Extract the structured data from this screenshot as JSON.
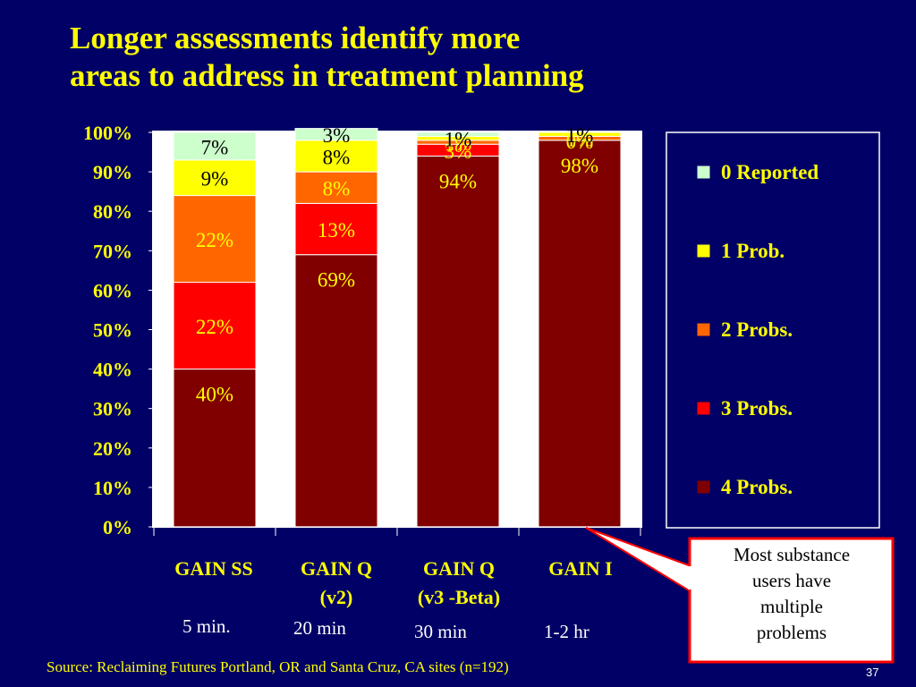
{
  "title": {
    "line1": "Longer assessments identify more",
    "line2": "areas to address in treatment planning"
  },
  "chart_data": {
    "type": "bar",
    "stacked": true,
    "categories": [
      "GAIN SS",
      "GAIN Q (v2)",
      "GAIN Q (v3 -Beta)",
      "GAIN I"
    ],
    "category_lines": [
      [
        "GAIN SS"
      ],
      [
        "GAIN Q",
        "(v2)"
      ],
      [
        "GAIN Q",
        "(v3 -Beta)"
      ],
      [
        "GAIN I"
      ]
    ],
    "durations": [
      "5 min.",
      "20 min",
      "30 min",
      "1-2 hr"
    ],
    "ylim": [
      0,
      100
    ],
    "yticks": [
      "0%",
      "10%",
      "20%",
      "30%",
      "40%",
      "50%",
      "60%",
      "70%",
      "80%",
      "90%",
      "100%"
    ],
    "grid": false,
    "legend_position": "right",
    "series": [
      {
        "name": "4 Probs.",
        "color": "#800000",
        "label_color": "#ffff00",
        "values": [
          40,
          69,
          94,
          98
        ],
        "labels": [
          "40%",
          "69%",
          "94%",
          "98%"
        ]
      },
      {
        "name": "3 Probs.",
        "color": "#ff0000",
        "label_color": "#ffff00",
        "values": [
          22,
          13,
          3,
          0
        ],
        "labels": [
          "22%",
          "13%",
          "3%",
          "0%"
        ]
      },
      {
        "name": "2 Probs.",
        "color": "#ff6600",
        "label_color": "#ffff00",
        "values": [
          22,
          8,
          1,
          1
        ],
        "labels": [
          "22%",
          "8%",
          "1%",
          "1%"
        ]
      },
      {
        "name": "1 Prob.",
        "color": "#ffff00",
        "label_color": "#000000",
        "values": [
          9,
          8,
          1,
          1
        ],
        "labels": [
          "9%",
          "8%",
          "1%",
          "1%"
        ]
      },
      {
        "name": "0 Reported",
        "color": "#ccffcc",
        "label_color": "#000000",
        "values": [
          7,
          3,
          1,
          0
        ],
        "labels": [
          "7%",
          "3%",
          "",
          ""
        ]
      }
    ]
  },
  "callout": {
    "lines": [
      "Most substance",
      "users have",
      "multiple",
      "problems"
    ]
  },
  "source": "Source:  Reclaiming Futures Portland, OR and Santa Cruz, CA sites (n=192)",
  "page_number": "37"
}
